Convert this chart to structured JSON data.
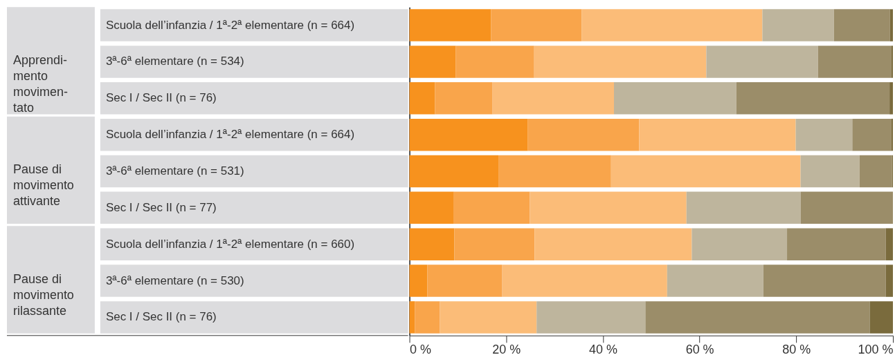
{
  "chart_data": {
    "type": "bar",
    "orientation": "horizontal",
    "stacked": true,
    "categories": [
      "Scuola dell’infanzia / 1ª-2ª elementare (n = 664)",
      "3ª-6ª elementare (n = 534)",
      "Sec I / Sec II (n = 76)",
      "Scuola dell’infanzia / 1ª-2ª elementare (n = 664)",
      "3ª-6ª elementare (n = 531)",
      "Sec I / Sec II (n = 77)",
      "Scuola dell’infanzia / 1ª-2ª elementare (n = 660)",
      "3ª-6ª elementare (n = 530)",
      "Sec I / Sec II (n = 76)"
    ],
    "series": [
      {
        "color": "#f7921e",
        "values": [
          16.9,
          9.6,
          5.3,
          24.5,
          18.4,
          9.2,
          9.3,
          3.7,
          1.1
        ]
      },
      {
        "color": "#f9a54b",
        "values": [
          18.7,
          16.2,
          11.9,
          23.0,
          23.3,
          15.7,
          16.6,
          15.5,
          5.2
        ]
      },
      {
        "color": "#fbbc78",
        "values": [
          37.4,
          35.6,
          25.1,
          32.4,
          39.2,
          32.4,
          32.5,
          34.1,
          20.0
        ]
      },
      {
        "color": "#beb59d",
        "values": [
          14.8,
          23.1,
          25.3,
          11.7,
          12.2,
          23.6,
          19.7,
          19.9,
          22.5
        ]
      },
      {
        "color": "#9b8d69",
        "values": [
          11.6,
          15.2,
          31.7,
          8.1,
          6.7,
          19.1,
          20.4,
          25.3,
          46.4
        ]
      },
      {
        "color": "#7a6b3d",
        "values": [
          0.6,
          0.3,
          0.7,
          0.3,
          0.2,
          0.0,
          1.5,
          1.5,
          4.8
        ]
      }
    ],
    "annotations": [
      "Apprendi-\nmento\nmovimen-\ntato",
      "Pause di\nmovimento\nattivante",
      "Pause di\nmovimento\nrilassante"
    ],
    "xlim": [
      0,
      100
    ],
    "xticks": [
      {
        "value": 0,
        "label": "0 %"
      },
      {
        "value": 20,
        "label": "20 %"
      },
      {
        "value": 40,
        "label": "40 %"
      },
      {
        "value": 60,
        "label": "60 %"
      },
      {
        "value": 80,
        "label": "80 %"
      },
      {
        "value": 100,
        "label": "100 %"
      }
    ],
    "grid": false,
    "legend": false
  }
}
